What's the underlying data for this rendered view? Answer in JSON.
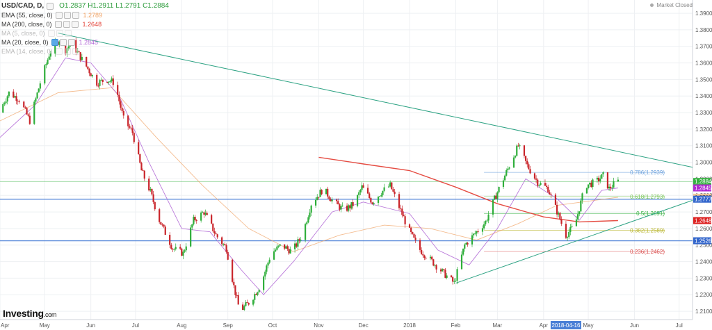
{
  "chart_data": {
    "type": "candlestick",
    "symbol": "USD/CAD",
    "interval": "D",
    "ohlc": {
      "o": "1.2837",
      "h": "1.2911",
      "l": "1.2791",
      "c": "1.2884"
    },
    "ylim": [
      1.205,
      1.398
    ],
    "y_ticks": [
      "1.3900",
      "1.3800",
      "1.3700",
      "1.3600",
      "1.3500",
      "1.3400",
      "1.3300",
      "1.3200",
      "1.3100",
      "1.3000",
      "1.2900",
      "1.2800",
      "1.2700",
      "1.2600",
      "1.2500",
      "1.2400",
      "1.2300",
      "1.2200",
      "1.2100"
    ],
    "x_range": [
      "2017-04-01",
      "2018-07-10"
    ],
    "x_ticks": [
      {
        "label": "Apr",
        "date": "2017-04-01"
      },
      {
        "label": "May",
        "date": "2017-05-01"
      },
      {
        "label": "Jun",
        "date": "2017-06-01"
      },
      {
        "label": "Jul",
        "date": "2017-07-01"
      },
      {
        "label": "Aug",
        "date": "2017-08-01"
      },
      {
        "label": "Sep",
        "date": "2017-09-01"
      },
      {
        "label": "Oct",
        "date": "2017-10-01"
      },
      {
        "label": "Nov",
        "date": "2017-11-01"
      },
      {
        "label": "Dec",
        "date": "2017-12-01"
      },
      {
        "label": "2018",
        "date": "2018-01-01"
      },
      {
        "label": "Feb",
        "date": "2018-02-01"
      },
      {
        "label": "Mar",
        "date": "2018-03-01"
      },
      {
        "label": "Apr",
        "date": "2018-04-01"
      },
      {
        "label": "May",
        "date": "2018-05-01"
      },
      {
        "label": "Jun",
        "date": "2018-06-01"
      },
      {
        "label": "Jul",
        "date": "2018-07-01"
      }
    ],
    "highlight_date": {
      "label": "2018-04-16",
      "date": "2018-04-16"
    },
    "price_path": [
      [
        "2017-04-01",
        1.33
      ],
      [
        "2017-04-08",
        1.342
      ],
      [
        "2017-04-15",
        1.338
      ],
      [
        "2017-04-22",
        1.325
      ],
      [
        "2017-04-29",
        1.348
      ],
      [
        "2017-05-05",
        1.365
      ],
      [
        "2017-05-08",
        1.37
      ],
      [
        "2017-05-12",
        1.374
      ],
      [
        "2017-05-16",
        1.368
      ],
      [
        "2017-05-20",
        1.372
      ],
      [
        "2017-05-25",
        1.365
      ],
      [
        "2017-06-01",
        1.355
      ],
      [
        "2017-06-06",
        1.348
      ],
      [
        "2017-06-13",
        1.35
      ],
      [
        "2017-06-18",
        1.348
      ],
      [
        "2017-06-24",
        1.326
      ],
      [
        "2017-06-30",
        1.318
      ],
      [
        "2017-07-06",
        1.295
      ],
      [
        "2017-07-12",
        1.282
      ],
      [
        "2017-07-18",
        1.265
      ],
      [
        "2017-07-27",
        1.248
      ],
      [
        "2017-08-03",
        1.245
      ],
      [
        "2017-08-10",
        1.265
      ],
      [
        "2017-08-17",
        1.27
      ],
      [
        "2017-08-25",
        1.256
      ],
      [
        "2017-09-01",
        1.248
      ],
      [
        "2017-09-06",
        1.225
      ],
      [
        "2017-09-10",
        1.21
      ],
      [
        "2017-09-17",
        1.216
      ],
      [
        "2017-09-24",
        1.226
      ],
      [
        "2017-10-01",
        1.245
      ],
      [
        "2017-10-08",
        1.25
      ],
      [
        "2017-10-15",
        1.246
      ],
      [
        "2017-10-22",
        1.256
      ],
      [
        "2017-10-28",
        1.275
      ],
      [
        "2017-11-05",
        1.284
      ],
      [
        "2017-11-12",
        1.276
      ],
      [
        "2017-11-19",
        1.271
      ],
      [
        "2017-11-26",
        1.275
      ],
      [
        "2017-12-01",
        1.285
      ],
      [
        "2017-12-08",
        1.276
      ],
      [
        "2017-12-14",
        1.282
      ],
      [
        "2017-12-20",
        1.286
      ],
      [
        "2018-01-01",
        1.26
      ],
      [
        "2018-01-08",
        1.248
      ],
      [
        "2018-01-15",
        1.242
      ],
      [
        "2018-01-25",
        1.233
      ],
      [
        "2018-02-01",
        1.227
      ],
      [
        "2018-02-08",
        1.25
      ],
      [
        "2018-02-15",
        1.257
      ],
      [
        "2018-02-22",
        1.264
      ],
      [
        "2018-03-01",
        1.28
      ],
      [
        "2018-03-08",
        1.294
      ],
      [
        "2018-03-16",
        1.31
      ],
      [
        "2018-03-22",
        1.298
      ],
      [
        "2018-03-29",
        1.288
      ],
      [
        "2018-04-05",
        1.284
      ],
      [
        "2018-04-12",
        1.268
      ],
      [
        "2018-04-17",
        1.256
      ],
      [
        "2018-04-23",
        1.262
      ],
      [
        "2018-04-30",
        1.286
      ],
      [
        "2018-05-07",
        1.288
      ],
      [
        "2018-05-12",
        1.292
      ],
      [
        "2018-05-16",
        1.284
      ],
      [
        "2018-05-21",
        1.2884
      ]
    ],
    "indicators": [
      {
        "name": "EMA (55, close, 0)",
        "value": "1.2789",
        "color": "#f0a060",
        "faded": false,
        "path": [
          [
            "2017-04-01",
            1.325
          ],
          [
            "2017-05-10",
            1.342
          ],
          [
            "2017-06-15",
            1.345
          ],
          [
            "2017-07-15",
            1.315
          ],
          [
            "2017-08-15",
            1.286
          ],
          [
            "2017-09-15",
            1.26
          ],
          [
            "2017-10-15",
            1.246
          ],
          [
            "2017-11-15",
            1.256
          ],
          [
            "2017-12-15",
            1.262
          ],
          [
            "2018-01-15",
            1.26
          ],
          [
            "2018-02-15",
            1.253
          ],
          [
            "2018-03-15",
            1.263
          ],
          [
            "2018-04-10",
            1.274
          ],
          [
            "2018-05-21",
            1.2789
          ]
        ]
      },
      {
        "name": "MA (200, close, 0)",
        "value": "1.2648",
        "color": "#e2382d",
        "faded": false,
        "path": [
          [
            "2017-11-01",
            1.303
          ],
          [
            "2017-12-01",
            1.299
          ],
          [
            "2018-01-01",
            1.295
          ],
          [
            "2018-02-01",
            1.285
          ],
          [
            "2018-03-01",
            1.275
          ],
          [
            "2018-04-01",
            1.267
          ],
          [
            "2018-04-25",
            1.264
          ],
          [
            "2018-05-21",
            1.2648
          ]
        ]
      },
      {
        "name": "MA (5, close, 0)",
        "value": "",
        "color": "#999999",
        "faded": true,
        "path": []
      },
      {
        "name": "MA (20, close, 0)",
        "value": "1.2845",
        "color": "#b36ad6",
        "faded": false,
        "path": [
          [
            "2017-04-01",
            1.315
          ],
          [
            "2017-04-25",
            1.335
          ],
          [
            "2017-05-15",
            1.363
          ],
          [
            "2017-06-01",
            1.36
          ],
          [
            "2017-06-20",
            1.34
          ],
          [
            "2017-07-10",
            1.3
          ],
          [
            "2017-08-01",
            1.26
          ],
          [
            "2017-08-20",
            1.258
          ],
          [
            "2017-09-10",
            1.235
          ],
          [
            "2017-09-25",
            1.22
          ],
          [
            "2017-10-15",
            1.24
          ],
          [
            "2017-11-10",
            1.27
          ],
          [
            "2017-12-01",
            1.276
          ],
          [
            "2018-01-01",
            1.269
          ],
          [
            "2018-01-20",
            1.247
          ],
          [
            "2018-02-10",
            1.238
          ],
          [
            "2018-03-01",
            1.26
          ],
          [
            "2018-03-20",
            1.29
          ],
          [
            "2018-04-10",
            1.278
          ],
          [
            "2018-04-25",
            1.265
          ],
          [
            "2018-05-10",
            1.283
          ],
          [
            "2018-05-21",
            1.2845
          ]
        ]
      },
      {
        "name": "EMA (14, close, 0)",
        "value": "",
        "color": "#999999",
        "faded": true,
        "path": []
      }
    ],
    "horizontal_levels": [
      {
        "label": "1.2777",
        "value": 1.2777,
        "color": "#4a7fd6"
      },
      {
        "label": "1.2526",
        "value": 1.2526,
        "color": "#4a7fd6"
      },
      {
        "label": "1.2884",
        "value": 1.2884,
        "color": "#2eae3a",
        "thin": true
      }
    ],
    "fib_levels": [
      {
        "label": "0.786(1.2939)",
        "value": 1.2939,
        "color": "#6aa0dc"
      },
      {
        "label": "0.618(1.2793)",
        "value": 1.2793,
        "color": "#7bc85a"
      },
      {
        "label": "0.5(1.2691)",
        "value": 1.2691,
        "color": "#2eae3a"
      },
      {
        "label": "0.382(1.2589)",
        "value": 1.2589,
        "color": "#b8b52a"
      },
      {
        "label": "0.236(1.2462)",
        "value": 1.2462,
        "color": "#d94c4c"
      }
    ],
    "trendlines": [
      {
        "from": [
          "2017-05-10",
          1.378
        ],
        "to": [
          "2018-07-10",
          1.297
        ],
        "color": "#2ea384"
      },
      {
        "from": [
          "2018-02-01",
          1.227
        ],
        "to": [
          "2018-07-10",
          1.277
        ],
        "color": "#2ea384"
      }
    ],
    "price_tags": [
      {
        "label": "1.2884",
        "value": 1.2884,
        "color": "#33b03f"
      },
      {
        "label": "1.2845",
        "value": 1.2845,
        "color": "#b02ad0"
      },
      {
        "label": "1.2789",
        "value": 1.2789,
        "color": "#f2c69a",
        "text_color": "#333333"
      },
      {
        "label": "1.2777",
        "value": 1.2777,
        "color": "#3366cc"
      },
      {
        "label": "1.2648",
        "value": 1.2648,
        "color": "#dd2222"
      },
      {
        "label": "1.2526",
        "value": 1.2526,
        "color": "#3366cc"
      }
    ]
  },
  "legend": {
    "title": "USD/CAD, D,",
    "ohlc_text": {
      "o": "O1.2837",
      "h": "H1.2911",
      "l": "L1.2791",
      "c": "C1.2884"
    }
  },
  "status_text": "Market Closed",
  "logo": {
    "name": "Investing",
    "suffix": ".com"
  },
  "colors": {
    "up": "#2eae3a",
    "down": "#c9242a",
    "grid": "#eef0f3"
  }
}
